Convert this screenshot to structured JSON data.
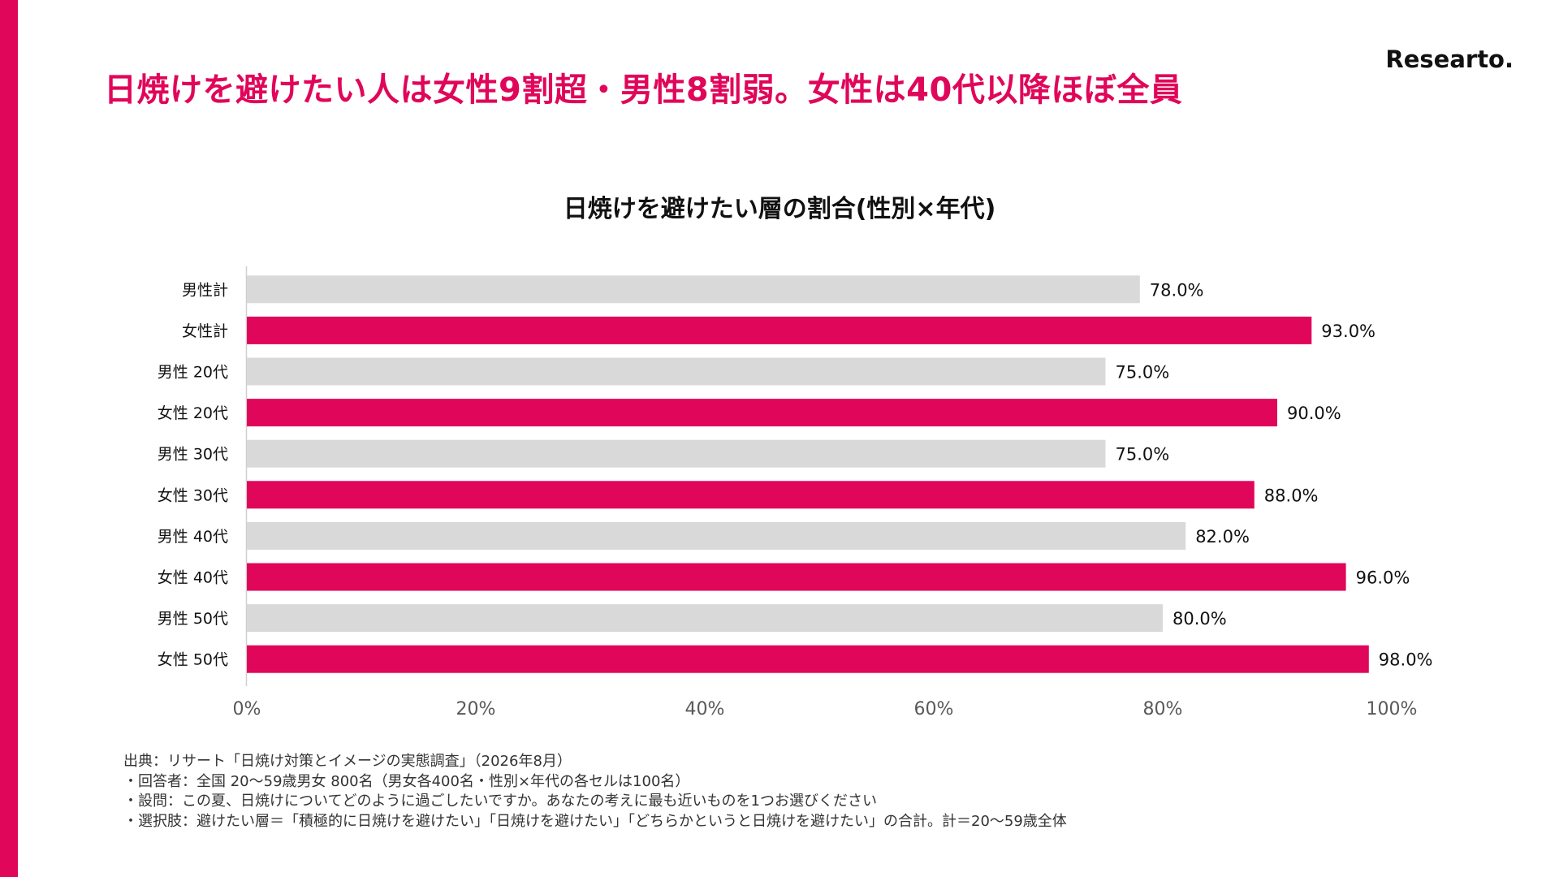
{
  "brand": {
    "name": "Researto."
  },
  "headline": "日焼けを避けたい人は女性9割超・男性8割弱。女性は40代以降ほぼ全員",
  "colors": {
    "accent": "#e0065a",
    "male_bar": "#d9d9d9",
    "female_bar": "#e0065a"
  },
  "chart_data": {
    "type": "bar",
    "orientation": "horizontal",
    "title": "日焼けを避けたい層の割合(性別×年代)",
    "categories": [
      "男性計",
      "女性計",
      "男性 20代",
      "女性 20代",
      "男性 30代",
      "女性 30代",
      "男性 40代",
      "女性 40代",
      "男性 50代",
      "女性 50代"
    ],
    "values": [
      78.0,
      93.0,
      75.0,
      90.0,
      75.0,
      88.0,
      82.0,
      96.0,
      80.0,
      98.0
    ],
    "value_labels": [
      "78.0%",
      "93.0%",
      "75.0%",
      "90.0%",
      "75.0%",
      "88.0%",
      "82.0%",
      "96.0%",
      "80.0%",
      "98.0%"
    ],
    "bar_colors": [
      "#d9d9d9",
      "#e0065a",
      "#d9d9d9",
      "#e0065a",
      "#d9d9d9",
      "#e0065a",
      "#d9d9d9",
      "#e0065a",
      "#d9d9d9",
      "#e0065a"
    ],
    "xlim": [
      0,
      100
    ],
    "xticks": [
      0,
      20,
      40,
      60,
      80,
      100
    ],
    "xtick_labels": [
      "0%",
      "20%",
      "40%",
      "60%",
      "80%",
      "100%"
    ],
    "xlabel": "",
    "ylabel": "",
    "grid": false,
    "legend": "none"
  },
  "footnotes": [
    "出典：リサート「日焼け対策とイメージの実態調査」（2026年8月）",
    "・回答者：全国 20〜59歳男女 800名（男女各400名・性別×年代の各セルは100名）",
    "・設問：この夏、日焼けについてどのように過ごしたいですか。あなたの考えに最も近いものを1つお選びください",
    "・選択肢：避けたい層＝「積極的に日焼けを避けたい」「日焼けを避けたい」「どちらかというと日焼けを避けたい」の合計。計＝20〜59歳全体"
  ]
}
